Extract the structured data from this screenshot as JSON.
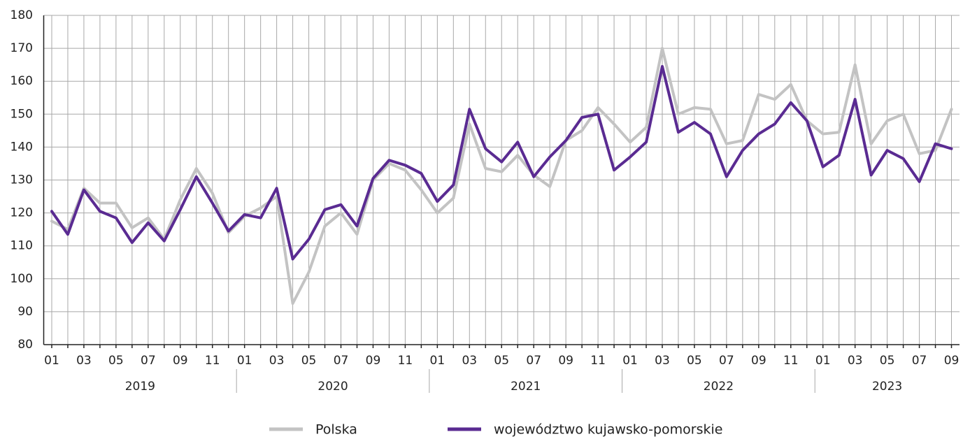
{
  "chart_data": {
    "type": "line",
    "categories": [
      "01",
      null,
      "03",
      null,
      "05",
      null,
      "07",
      null,
      "09",
      null,
      "11",
      null,
      "01",
      null,
      "03",
      null,
      "05",
      null,
      "07",
      null,
      "09",
      null,
      "11",
      null,
      "01",
      null,
      "03",
      null,
      "05",
      null,
      "07",
      null,
      "09",
      null,
      "11",
      null,
      "01",
      null,
      "03",
      null,
      "05",
      null,
      "07",
      null,
      "09",
      null,
      "11",
      null,
      "01",
      null,
      "03",
      null,
      "05",
      null,
      "07",
      null,
      "09"
    ],
    "years": [
      "2019",
      "2020",
      "2021",
      "2022",
      "2023"
    ],
    "series": [
      {
        "name": "Polska",
        "color": "#c3c3c3",
        "values": [
          117.5,
          115,
          127.5,
          123,
          123,
          115.5,
          118.5,
          112,
          124,
          133.5,
          126,
          114,
          119,
          121.5,
          125,
          92.5,
          102,
          116,
          120,
          113.5,
          130,
          135,
          133,
          127,
          120,
          124.5,
          147,
          133.5,
          132.5,
          137.5,
          131.5,
          128,
          142,
          145,
          152,
          147,
          141.5,
          146,
          170,
          150,
          152,
          151.5,
          141,
          142,
          156,
          154.5,
          159,
          148,
          144,
          144.5,
          165,
          141,
          148,
          150,
          138,
          139,
          151.5
        ]
      },
      {
        "name": "województwo kujawsko-pomorskie",
        "color": "#5a2b92",
        "values": [
          120.5,
          113.5,
          127,
          120.5,
          118.5,
          111,
          117,
          111.5,
          121,
          131,
          123,
          114.5,
          119.5,
          118.5,
          127.5,
          106,
          112,
          121,
          122.5,
          116,
          130.5,
          136,
          134.5,
          132,
          123.5,
          128.5,
          151.5,
          139.5,
          135.5,
          141.5,
          131,
          137,
          142,
          149,
          150,
          133,
          137,
          141.5,
          164.5,
          144.5,
          147.5,
          144,
          131,
          139,
          144,
          147,
          153.5,
          148,
          134,
          137.5,
          154.5,
          131.5,
          139,
          136.5,
          129.5,
          141,
          139.5
        ]
      }
    ],
    "ylim": [
      80,
      180
    ],
    "yticks": [
      80,
      90,
      100,
      110,
      120,
      130,
      140,
      150,
      160,
      170,
      180
    ],
    "grid": true,
    "legend": "bottom"
  }
}
